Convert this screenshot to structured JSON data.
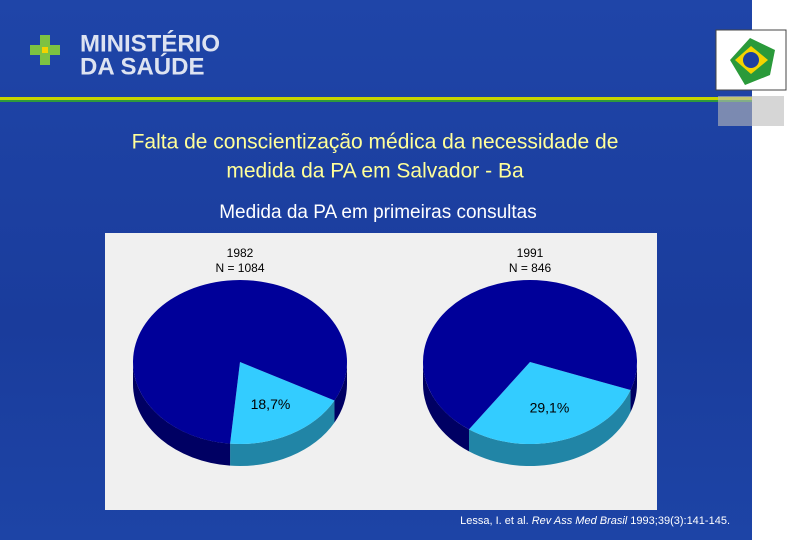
{
  "header": {
    "logo_line1": "MINISTÉRIO",
    "logo_line2": "DA SAÚDE"
  },
  "slide": {
    "title_line1": "Falta de conscientização médica da necessidade de",
    "title_line2": "medida da PA em Salvador - Ba",
    "subtitle": "Medida da PA em primeiras consultas",
    "reference": {
      "authors": "Lessa, I. et al. ",
      "journal": "Rev Ass Med Brasil",
      "citation": " 1993;39(3):141-145."
    }
  },
  "chart_data": [
    {
      "type": "pie3d",
      "title": "1982",
      "subtitle": "N = 1084",
      "values": [
        18.7,
        81.3
      ],
      "value_labels": [
        "18,7%",
        null
      ],
      "colors": [
        "#33ccff",
        "#000099"
      ]
    },
    {
      "type": "pie3d",
      "title": "1991",
      "subtitle": "N = 846",
      "values": [
        29.1,
        70.9
      ],
      "value_labels": [
        "29,1%",
        null
      ],
      "colors": [
        "#33ccff",
        "#000099"
      ]
    }
  ]
}
